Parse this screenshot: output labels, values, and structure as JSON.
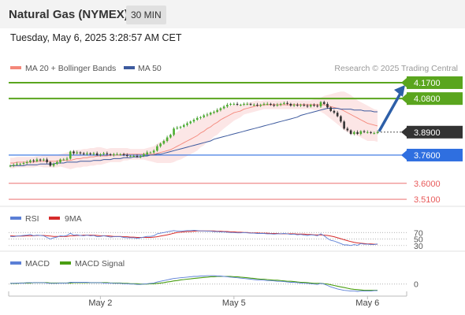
{
  "header": {
    "title": "Natural Gas (NYMEX)",
    "timeframe": "30 MIN",
    "datetime": "Tuesday, May 6, 2025 3:28:57 AM CET"
  },
  "credit": "Research © 2025 Trading Central",
  "chart_data": [
    {
      "type": "candlestick",
      "legend": [
        {
          "name": "MA 20 + Bollinger Bands",
          "color": "#f4877a"
        },
        {
          "name": "MA 50",
          "color": "#3d5a9e"
        }
      ],
      "ylim": [
        3.47,
        4.21
      ],
      "x_ticks": [
        {
          "label": "May 2",
          "index": 27
        },
        {
          "label": "May 5",
          "index": 67
        },
        {
          "label": "May 6",
          "index": 107
        }
      ],
      "levels": [
        {
          "value": 4.17,
          "label": "4.1700",
          "color": "#5aa51e",
          "style": "box"
        },
        {
          "value": 4.08,
          "label": "4.0800",
          "color": "#5aa51e",
          "style": "box"
        },
        {
          "value": 3.89,
          "label": "3.8900",
          "color": "#333333",
          "style": "box"
        },
        {
          "value": 3.76,
          "label": "3.7600",
          "color": "#2f6fe0",
          "style": "box"
        },
        {
          "value": 3.6,
          "label": "3.6000",
          "color": "#e85a5a",
          "style": "text"
        },
        {
          "value": 3.51,
          "label": "3.5100",
          "color": "#e85a5a",
          "style": "text"
        }
      ],
      "last_price": 3.89,
      "forecast_path": [
        3.89,
        4.17
      ],
      "ohlc_source": "closes",
      "closes": [
        3.7,
        3.705,
        3.71,
        3.71,
        3.715,
        3.72,
        3.73,
        3.725,
        3.735,
        3.73,
        3.735,
        3.72,
        3.7,
        3.71,
        3.72,
        3.735,
        3.735,
        3.74,
        3.78,
        3.77,
        3.775,
        3.77,
        3.765,
        3.77,
        3.765,
        3.77,
        3.76,
        3.765,
        3.77,
        3.765,
        3.76,
        3.765,
        3.765,
        3.765,
        3.76,
        3.755,
        3.755,
        3.755,
        3.75,
        3.755,
        3.765,
        3.775,
        3.775,
        3.785,
        3.81,
        3.825,
        3.84,
        3.86,
        3.875,
        3.91,
        3.915,
        3.92,
        3.93,
        3.94,
        3.95,
        3.96,
        3.97,
        3.975,
        3.985,
        3.99,
        4.0,
        4.005,
        4.015,
        4.025,
        4.035,
        4.045,
        4.05,
        4.05,
        4.045,
        4.045,
        4.05,
        4.05,
        4.045,
        4.045,
        4.04,
        4.045,
        4.05,
        4.05,
        4.045,
        4.04,
        4.045,
        4.05,
        4.055,
        4.05,
        4.04,
        4.045,
        4.04,
        4.045,
        4.04,
        4.035,
        4.045,
        4.04,
        4.035,
        4.06,
        4.05,
        4.03,
        4.01,
        4.0,
        3.98,
        3.95,
        3.91,
        3.9,
        3.88,
        3.89,
        3.88,
        3.895,
        3.89,
        3.89,
        3.885,
        3.885,
        3.89
      ],
      "ma20": [
        3.715,
        3.715,
        3.72,
        3.72,
        3.72,
        3.72,
        3.72,
        3.72,
        3.725,
        3.725,
        3.725,
        3.725,
        3.725,
        3.725,
        3.725,
        3.73,
        3.73,
        3.73,
        3.73,
        3.735,
        3.74,
        3.74,
        3.745,
        3.745,
        3.75,
        3.75,
        3.755,
        3.755,
        3.755,
        3.755,
        3.76,
        3.76,
        3.76,
        3.76,
        3.765,
        3.765,
        3.765,
        3.765,
        3.765,
        3.765,
        3.765,
        3.765,
        3.765,
        3.765,
        3.77,
        3.775,
        3.78,
        3.785,
        3.79,
        3.8,
        3.81,
        3.82,
        3.83,
        3.84,
        3.85,
        3.86,
        3.87,
        3.885,
        3.895,
        3.91,
        3.92,
        3.935,
        3.945,
        3.96,
        3.97,
        3.98,
        3.99,
        4.0,
        4.005,
        4.01,
        4.02,
        4.025,
        4.03,
        4.035,
        4.04,
        4.04,
        4.045,
        4.045,
        4.045,
        4.045,
        4.045,
        4.045,
        4.045,
        4.045,
        4.045,
        4.045,
        4.045,
        4.045,
        4.045,
        4.045,
        4.045,
        4.045,
        4.045,
        4.045,
        4.045,
        4.04,
        4.035,
        4.03,
        4.025,
        4.02,
        4.01,
        4.0,
        3.99,
        3.98,
        3.97,
        3.96,
        3.95,
        3.94,
        3.935,
        3.93,
        3.925
      ],
      "ma50": [
        3.7,
        3.7,
        3.7,
        3.7,
        3.7,
        3.705,
        3.705,
        3.705,
        3.705,
        3.71,
        3.71,
        3.71,
        3.71,
        3.71,
        3.715,
        3.715,
        3.715,
        3.72,
        3.72,
        3.72,
        3.72,
        3.725,
        3.725,
        3.725,
        3.725,
        3.73,
        3.73,
        3.73,
        3.735,
        3.735,
        3.735,
        3.74,
        3.74,
        3.74,
        3.745,
        3.745,
        3.745,
        3.75,
        3.75,
        3.75,
        3.755,
        3.755,
        3.76,
        3.76,
        3.765,
        3.765,
        3.77,
        3.775,
        3.78,
        3.785,
        3.79,
        3.795,
        3.8,
        3.805,
        3.81,
        3.815,
        3.82,
        3.825,
        3.83,
        3.835,
        3.84,
        3.85,
        3.855,
        3.86,
        3.865,
        3.87,
        3.875,
        3.88,
        3.885,
        3.89,
        3.895,
        3.9,
        3.905,
        3.91,
        3.915,
        3.92,
        3.925,
        3.93,
        3.935,
        3.94,
        3.945,
        3.95,
        3.955,
        3.96,
        3.965,
        3.97,
        3.975,
        3.985,
        3.99,
        3.995,
        4.0,
        4.005,
        4.01,
        4.015,
        4.02,
        4.025,
        4.025,
        4.025,
        4.025,
        4.02,
        4.02,
        4.02,
        4.02,
        4.015,
        4.015,
        4.015,
        4.01,
        4.01,
        4.01,
        4.005,
        4.005
      ],
      "bb_width": [
        0.03,
        0.03,
        0.03,
        0.03,
        0.03,
        0.03,
        0.03,
        0.03,
        0.03,
        0.03,
        0.035,
        0.035,
        0.035,
        0.035,
        0.035,
        0.035,
        0.04,
        0.045,
        0.05,
        0.05,
        0.05,
        0.05,
        0.05,
        0.05,
        0.05,
        0.05,
        0.05,
        0.05,
        0.045,
        0.04,
        0.04,
        0.04,
        0.04,
        0.04,
        0.035,
        0.035,
        0.03,
        0.03,
        0.03,
        0.03,
        0.03,
        0.035,
        0.04,
        0.045,
        0.055,
        0.06,
        0.065,
        0.07,
        0.075,
        0.08,
        0.08,
        0.085,
        0.085,
        0.085,
        0.085,
        0.085,
        0.085,
        0.08,
        0.08,
        0.075,
        0.075,
        0.07,
        0.07,
        0.065,
        0.06,
        0.055,
        0.05,
        0.045,
        0.04,
        0.035,
        0.03,
        0.03,
        0.03,
        0.03,
        0.03,
        0.025,
        0.025,
        0.025,
        0.025,
        0.025,
        0.025,
        0.025,
        0.025,
        0.025,
        0.025,
        0.025,
        0.025,
        0.025,
        0.025,
        0.025,
        0.025,
        0.03,
        0.03,
        0.04,
        0.05,
        0.06,
        0.07,
        0.08,
        0.09,
        0.1,
        0.11,
        0.11,
        0.11,
        0.105,
        0.1,
        0.1,
        0.1,
        0.1,
        0.095,
        0.09,
        0.09
      ]
    },
    {
      "type": "line",
      "title": "RSI",
      "series": [
        {
          "name": "RSI",
          "color": "#5b7fd6"
        },
        {
          "name": "9MA",
          "color": "#d62b2b"
        }
      ],
      "levels": [
        {
          "value": 70,
          "label": "70"
        },
        {
          "value": 50,
          "label": "50"
        },
        {
          "value": 30,
          "label": "30"
        }
      ],
      "ylim": [
        15,
        90
      ],
      "rsi": [
        58,
        57,
        59,
        60,
        61,
        62,
        64,
        60,
        62,
        61,
        60,
        55,
        50,
        54,
        56,
        60,
        59,
        61,
        68,
        62,
        63,
        61,
        60,
        62,
        60,
        61,
        57,
        58,
        60,
        58,
        56,
        57,
        57,
        57,
        55,
        54,
        54,
        54,
        52,
        54,
        56,
        58,
        58,
        60,
        66,
        68,
        70,
        72,
        74,
        76,
        74,
        74,
        75,
        76,
        76,
        77,
        76,
        75,
        75,
        74,
        74,
        73,
        73,
        72,
        72,
        71,
        70,
        70,
        69,
        69,
        70,
        69,
        68,
        68,
        67,
        67,
        67,
        66,
        66,
        65,
        66,
        66,
        67,
        66,
        64,
        65,
        63,
        64,
        62,
        61,
        63,
        62,
        60,
        66,
        60,
        52,
        46,
        44,
        40,
        36,
        32,
        32,
        30,
        33,
        31,
        36,
        34,
        34,
        33,
        33,
        35
      ],
      "ma9": [
        60,
        59,
        59,
        59,
        59,
        60,
        60,
        60,
        61,
        61,
        61,
        60,
        59,
        58,
        58,
        58,
        58,
        58,
        60,
        60,
        61,
        61,
        62,
        62,
        62,
        62,
        61,
        60,
        60,
        60,
        59,
        58,
        58,
        58,
        57,
        57,
        56,
        56,
        55,
        55,
        55,
        55,
        55,
        56,
        57,
        59,
        61,
        63,
        65,
        68,
        70,
        71,
        72,
        73,
        73,
        74,
        75,
        75,
        75,
        75,
        75,
        75,
        74,
        74,
        73,
        73,
        72,
        72,
        71,
        71,
        70,
        70,
        69,
        69,
        69,
        68,
        68,
        68,
        67,
        67,
        67,
        66,
        66,
        66,
        66,
        66,
        65,
        65,
        65,
        64,
        64,
        63,
        63,
        63,
        62,
        61,
        59,
        57,
        54,
        51,
        48,
        45,
        42,
        40,
        38,
        37,
        36,
        35,
        35,
        34,
        34
      ]
    },
    {
      "type": "line",
      "title": "MACD",
      "series": [
        {
          "name": "MACD",
          "color": "#5b7fd6"
        },
        {
          "name": "MACD Signal",
          "color": "#4a9e12"
        }
      ],
      "levels": [
        {
          "value": 0,
          "label": "0"
        }
      ],
      "ylim": [
        -0.03,
        0.04
      ],
      "macd": [
        0.002,
        0.002,
        0.003,
        0.003,
        0.003,
        0.004,
        0.004,
        0.004,
        0.004,
        0.004,
        0.004,
        0.003,
        0.002,
        0.002,
        0.002,
        0.003,
        0.003,
        0.003,
        0.005,
        0.005,
        0.005,
        0.005,
        0.005,
        0.005,
        0.004,
        0.004,
        0.004,
        0.004,
        0.003,
        0.003,
        0.003,
        0.002,
        0.002,
        0.002,
        0.001,
        0.001,
        0.0,
        0.0,
        -0.001,
        -0.001,
        0.0,
        0.001,
        0.002,
        0.003,
        0.006,
        0.008,
        0.01,
        0.012,
        0.014,
        0.016,
        0.017,
        0.018,
        0.019,
        0.02,
        0.021,
        0.022,
        0.022,
        0.023,
        0.023,
        0.024,
        0.024,
        0.024,
        0.023,
        0.023,
        0.022,
        0.021,
        0.02,
        0.019,
        0.018,
        0.017,
        0.016,
        0.015,
        0.014,
        0.013,
        0.012,
        0.012,
        0.011,
        0.01,
        0.01,
        0.009,
        0.008,
        0.008,
        0.007,
        0.006,
        0.005,
        0.005,
        0.004,
        0.003,
        0.002,
        0.002,
        0.001,
        0.0,
        -0.001,
        0.002,
        0.0,
        -0.004,
        -0.008,
        -0.011,
        -0.014,
        -0.016,
        -0.018,
        -0.019,
        -0.02,
        -0.02,
        -0.021,
        -0.02,
        -0.02,
        -0.02,
        -0.02,
        -0.019,
        -0.019
      ],
      "signal": [
        0.002,
        0.002,
        0.002,
        0.003,
        0.003,
        0.003,
        0.003,
        0.004,
        0.004,
        0.004,
        0.004,
        0.004,
        0.003,
        0.003,
        0.003,
        0.003,
        0.003,
        0.003,
        0.003,
        0.004,
        0.004,
        0.004,
        0.004,
        0.004,
        0.004,
        0.004,
        0.004,
        0.004,
        0.004,
        0.004,
        0.003,
        0.003,
        0.003,
        0.003,
        0.002,
        0.002,
        0.001,
        0.001,
        0.001,
        0.0,
        0.0,
        0.0,
        0.001,
        0.001,
        0.002,
        0.003,
        0.004,
        0.006,
        0.007,
        0.009,
        0.01,
        0.012,
        0.013,
        0.014,
        0.015,
        0.016,
        0.017,
        0.018,
        0.019,
        0.02,
        0.021,
        0.021,
        0.022,
        0.022,
        0.022,
        0.022,
        0.022,
        0.021,
        0.021,
        0.02,
        0.019,
        0.018,
        0.017,
        0.016,
        0.015,
        0.014,
        0.014,
        0.013,
        0.012,
        0.011,
        0.011,
        0.01,
        0.009,
        0.008,
        0.008,
        0.007,
        0.006,
        0.005,
        0.005,
        0.004,
        0.003,
        0.002,
        0.002,
        0.002,
        0.001,
        0.0,
        -0.002,
        -0.004,
        -0.006,
        -0.008,
        -0.01,
        -0.012,
        -0.014,
        -0.015,
        -0.016,
        -0.017,
        -0.018,
        -0.018,
        -0.018,
        -0.018,
        -0.018
      ]
    }
  ]
}
